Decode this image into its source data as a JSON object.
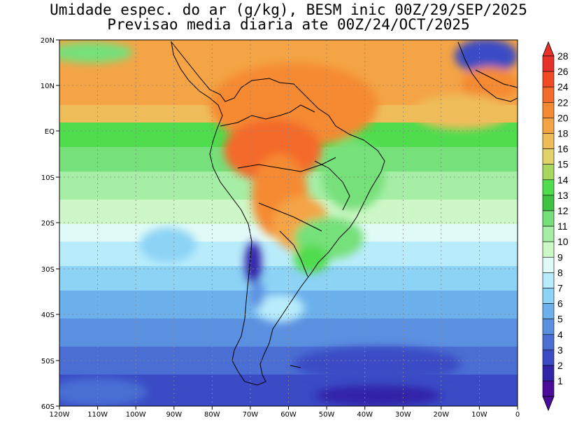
{
  "title_line1": "Umidade espec. do ar (g/kg), BESM inic 00Z/29/SEP/2025",
  "title_line2": "Previsao media diaria ate 00Z/24/OCT/2025",
  "lat_labels": [
    "20N",
    "10N",
    "EQ",
    "10S",
    "20S",
    "30S",
    "40S",
    "50S",
    "60S"
  ],
  "lon_labels": [
    "120W",
    "110W",
    "100W",
    "90W",
    "80W",
    "70W",
    "60W",
    "50W",
    "40W",
    "30W",
    "20W",
    "10W",
    "0"
  ],
  "colorbar": {
    "levels": [
      "28",
      "26",
      "24",
      "22",
      "20",
      "18",
      "16",
      "15",
      "14",
      "13",
      "12",
      "11",
      "10",
      "9",
      "8",
      "7",
      "6",
      "5",
      "4",
      "3",
      "2",
      "1"
    ],
    "colors": [
      "#e8302a",
      "#f04b24",
      "#f46a2a",
      "#f58a32",
      "#f4a445",
      "#eebd5a",
      "#dfd36a",
      "#a9d660",
      "#4fdc4d",
      "#3fc23f",
      "#76e07a",
      "#a6eea6",
      "#cdf7c6",
      "#e0fbf7",
      "#b8ecfb",
      "#8cd3f6",
      "#6cb0ec",
      "#5b8fe0",
      "#4a6ed4",
      "#3a4bc5",
      "#3224a8",
      "#4a0c9a"
    ]
  },
  "fields_colors": {
    "ocean_north": "#f4a445",
    "continent_hot": "#f0682a",
    "equator_band": "#4fdc4d",
    "subtropical": "#cdf7c6",
    "midlat": "#8cd3f6",
    "southern": "#4a6ed4",
    "polar": "#3a4bc5"
  }
}
